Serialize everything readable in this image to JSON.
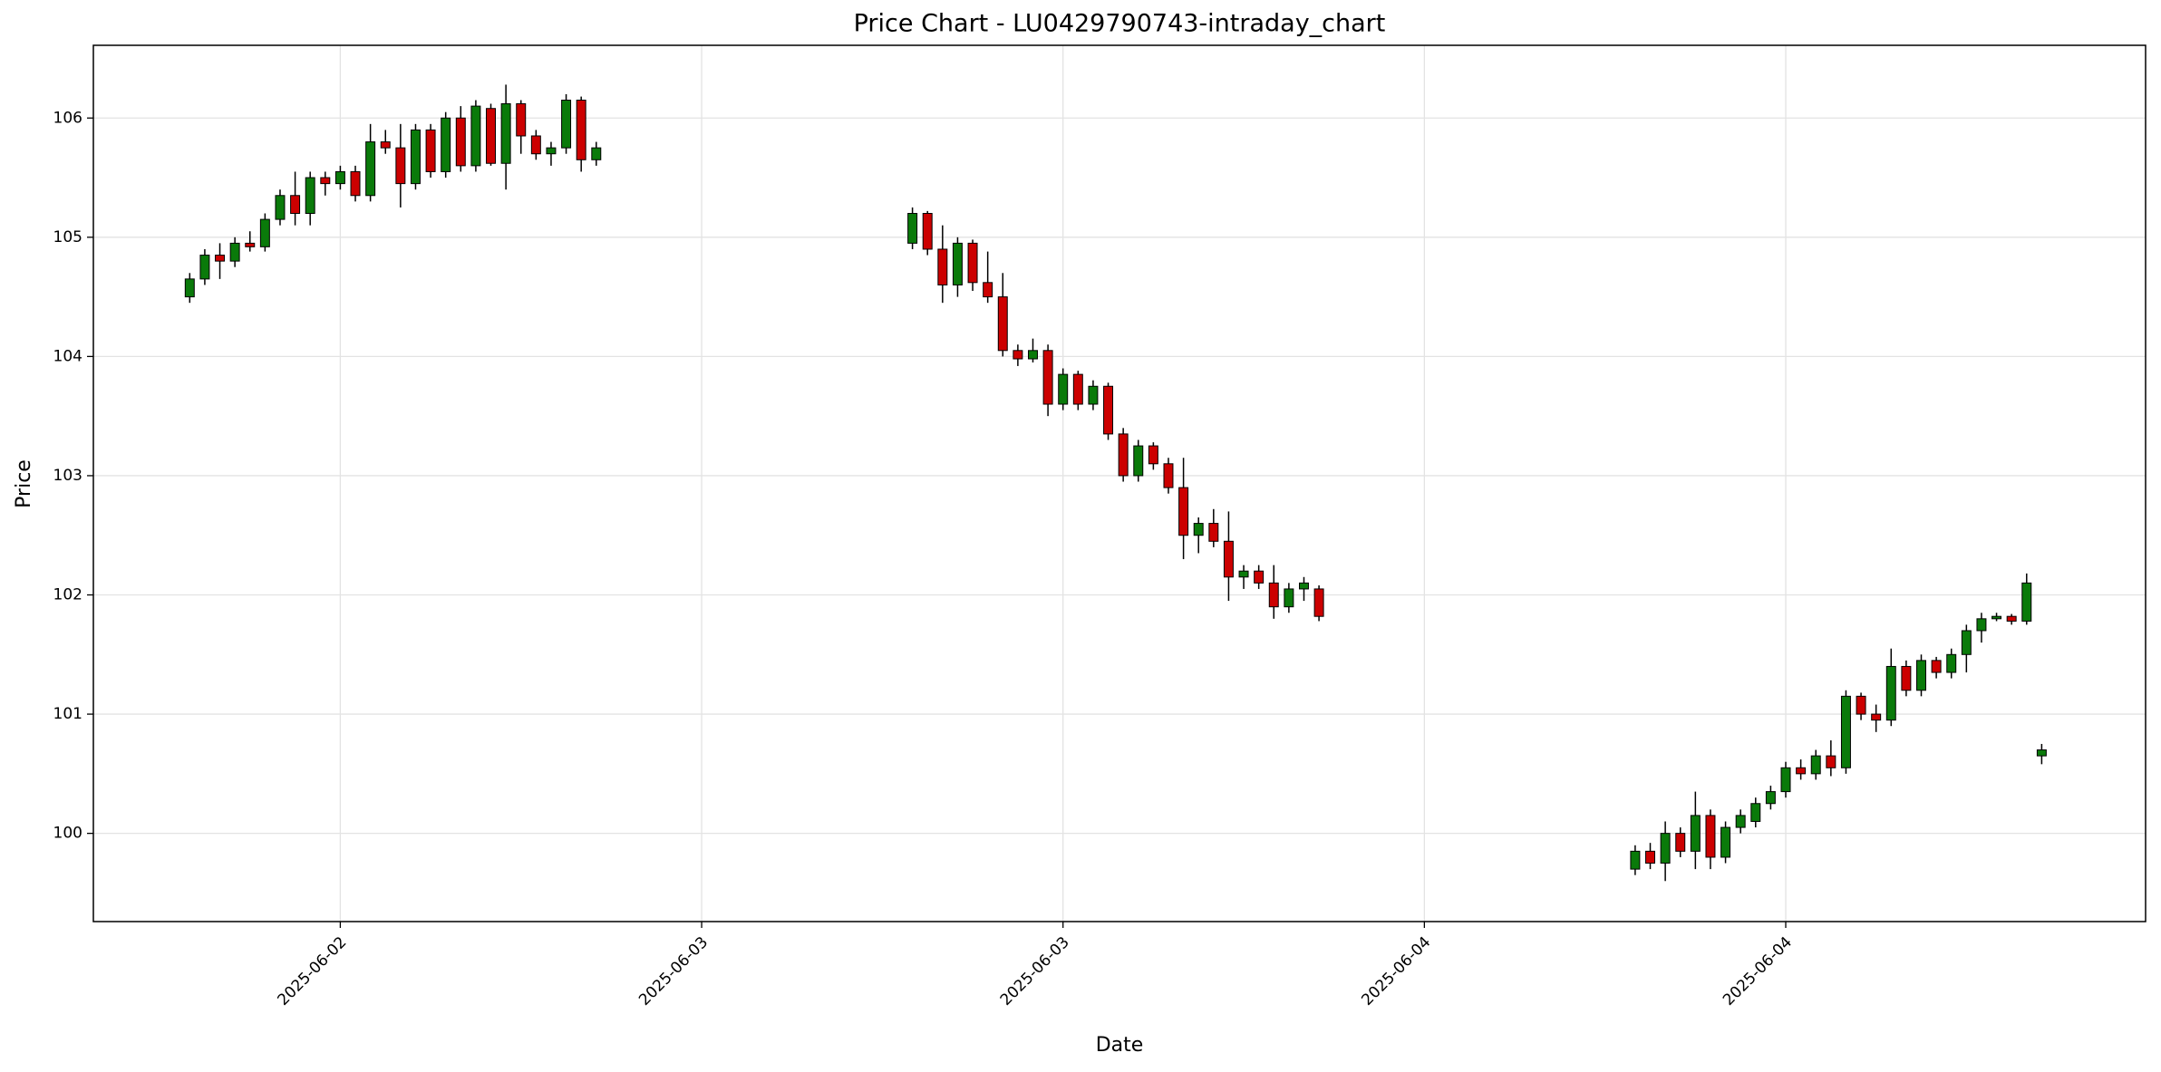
{
  "chart_data": {
    "type": "candlestick",
    "title": "Price Chart - LU0429790743-intraday_chart",
    "x_label": "Date",
    "y_label": "Price",
    "up_color": "#0a7a0a",
    "down_color": "#cc0000",
    "grid": true,
    "xlim": [
      "2025-06-02T03:48",
      "2025-06-04T23:57"
    ],
    "xticks": [
      {
        "value": "2025-06-02T12:00",
        "label": "2025-06-02"
      },
      {
        "value": "2025-06-03T00:00",
        "label": "2025-06-03"
      },
      {
        "value": "2025-06-03T12:00",
        "label": "2025-06-03"
      },
      {
        "value": "2025-06-04T00:00",
        "label": "2025-06-04"
      },
      {
        "value": "2025-06-04T12:00",
        "label": "2025-06-04"
      }
    ],
    "ylim": [
      99.26,
      106.61
    ],
    "yticks": [
      100,
      101,
      102,
      103,
      104,
      105,
      106
    ],
    "x": [
      "2025-06-02T07:00",
      "2025-06-02T07:30",
      "2025-06-02T08:00",
      "2025-06-02T08:30",
      "2025-06-02T09:00",
      "2025-06-02T09:30",
      "2025-06-02T10:00",
      "2025-06-02T10:30",
      "2025-06-02T11:00",
      "2025-06-02T11:30",
      "2025-06-02T12:00",
      "2025-06-02T12:30",
      "2025-06-02T13:00",
      "2025-06-02T13:30",
      "2025-06-02T14:00",
      "2025-06-02T14:30",
      "2025-06-02T15:00",
      "2025-06-02T15:30",
      "2025-06-02T16:00",
      "2025-06-02T16:30",
      "2025-06-02T17:00",
      "2025-06-02T17:30",
      "2025-06-02T18:00",
      "2025-06-02T18:30",
      "2025-06-02T19:00",
      "2025-06-02T19:30",
      "2025-06-02T20:00",
      "2025-06-02T20:30",
      "2025-06-03T07:00",
      "2025-06-03T07:30",
      "2025-06-03T08:00",
      "2025-06-03T08:30",
      "2025-06-03T09:00",
      "2025-06-03T09:30",
      "2025-06-03T10:00",
      "2025-06-03T10:30",
      "2025-06-03T11:00",
      "2025-06-03T11:30",
      "2025-06-03T12:00",
      "2025-06-03T12:30",
      "2025-06-03T13:00",
      "2025-06-03T13:30",
      "2025-06-03T14:00",
      "2025-06-03T14:30",
      "2025-06-03T15:00",
      "2025-06-03T15:30",
      "2025-06-03T16:00",
      "2025-06-03T16:30",
      "2025-06-03T17:00",
      "2025-06-03T17:30",
      "2025-06-03T18:00",
      "2025-06-03T18:30",
      "2025-06-03T19:00",
      "2025-06-03T19:30",
      "2025-06-03T20:00",
      "2025-06-03T20:30",
      "2025-06-04T07:00",
      "2025-06-04T07:30",
      "2025-06-04T08:00",
      "2025-06-04T08:30",
      "2025-06-04T09:00",
      "2025-06-04T09:30",
      "2025-06-04T10:00",
      "2025-06-04T10:30",
      "2025-06-04T11:00",
      "2025-06-04T11:30",
      "2025-06-04T12:00",
      "2025-06-04T12:30",
      "2025-06-04T13:00",
      "2025-06-04T13:30",
      "2025-06-04T14:00",
      "2025-06-04T14:30",
      "2025-06-04T15:00",
      "2025-06-04T15:30",
      "2025-06-04T16:00",
      "2025-06-04T16:30",
      "2025-06-04T17:00",
      "2025-06-04T17:30",
      "2025-06-04T18:00",
      "2025-06-04T18:30",
      "2025-06-04T19:00",
      "2025-06-04T19:30",
      "2025-06-04T20:00",
      "2025-06-04T20:30"
    ],
    "open": [
      104.5,
      104.65,
      104.85,
      104.8,
      104.95,
      104.92,
      105.15,
      105.35,
      105.2,
      105.5,
      105.45,
      105.55,
      105.35,
      105.8,
      105.75,
      105.45,
      105.9,
      105.55,
      106.0,
      105.6,
      106.08,
      105.62,
      106.12,
      105.85,
      105.7,
      105.75,
      106.15,
      105.65,
      104.95,
      105.2,
      104.9,
      104.6,
      104.95,
      104.62,
      104.5,
      104.05,
      103.98,
      104.05,
      103.6,
      103.85,
      103.6,
      103.75,
      103.35,
      103.0,
      103.25,
      103.1,
      102.9,
      102.5,
      102.6,
      102.45,
      102.15,
      102.2,
      102.1,
      101.9,
      102.05,
      102.05,
      99.7,
      99.85,
      99.75,
      100.0,
      99.85,
      100.15,
      99.8,
      100.05,
      100.1,
      100.25,
      100.35,
      100.55,
      100.5,
      100.65,
      100.55,
      101.15,
      101.0,
      100.95,
      101.4,
      101.2,
      101.45,
      101.35,
      101.5,
      101.7,
      101.8,
      101.82,
      101.78,
      100.65
    ],
    "high": [
      104.7,
      104.9,
      104.95,
      105.0,
      105.05,
      105.2,
      105.4,
      105.55,
      105.55,
      105.55,
      105.6,
      105.6,
      105.95,
      105.9,
      105.95,
      105.95,
      105.95,
      106.05,
      106.1,
      106.15,
      106.12,
      106.28,
      106.15,
      105.9,
      105.8,
      106.2,
      106.18,
      105.8,
      105.25,
      105.22,
      105.1,
      105.0,
      104.98,
      104.88,
      104.7,
      104.1,
      104.15,
      104.1,
      103.9,
      103.88,
      103.8,
      103.78,
      103.4,
      103.3,
      103.28,
      103.15,
      103.15,
      102.65,
      102.72,
      102.7,
      102.25,
      102.25,
      102.25,
      102.1,
      102.15,
      102.08,
      99.9,
      99.92,
      100.1,
      100.05,
      100.35,
      100.2,
      100.1,
      100.2,
      100.3,
      100.4,
      100.6,
      100.62,
      100.7,
      100.78,
      101.2,
      101.18,
      101.08,
      101.55,
      101.45,
      101.5,
      101.48,
      101.55,
      101.75,
      101.85,
      101.85,
      101.84,
      102.18,
      100.75
    ],
    "low": [
      104.45,
      104.6,
      104.65,
      104.75,
      104.88,
      104.88,
      105.1,
      105.1,
      105.1,
      105.35,
      105.4,
      105.3,
      105.3,
      105.7,
      105.25,
      105.4,
      105.5,
      105.5,
      105.55,
      105.55,
      105.6,
      105.4,
      105.7,
      105.65,
      105.6,
      105.7,
      105.55,
      105.6,
      104.9,
      104.85,
      104.45,
      104.5,
      104.55,
      104.45,
      104.0,
      103.92,
      103.95,
      103.5,
      103.55,
      103.55,
      103.55,
      103.3,
      102.95,
      102.95,
      103.05,
      102.85,
      102.3,
      102.35,
      102.4,
      101.95,
      102.05,
      102.05,
      101.8,
      101.85,
      101.95,
      101.78,
      99.65,
      99.7,
      99.6,
      99.8,
      99.7,
      99.7,
      99.75,
      100.0,
      100.05,
      100.2,
      100.3,
      100.45,
      100.45,
      100.48,
      100.5,
      100.95,
      100.85,
      100.9,
      101.15,
      101.15,
      101.3,
      101.3,
      101.35,
      101.6,
      101.78,
      101.75,
      101.75,
      100.58
    ],
    "close": [
      104.65,
      104.85,
      104.8,
      104.95,
      104.92,
      105.15,
      105.35,
      105.2,
      105.5,
      105.45,
      105.55,
      105.35,
      105.8,
      105.75,
      105.45,
      105.9,
      105.55,
      106.0,
      105.6,
      106.1,
      105.62,
      106.12,
      105.85,
      105.7,
      105.75,
      106.15,
      105.65,
      105.75,
      105.2,
      104.9,
      104.6,
      104.95,
      104.62,
      104.5,
      104.05,
      103.98,
      104.05,
      103.6,
      103.85,
      103.6,
      103.75,
      103.35,
      103.0,
      103.25,
      103.1,
      102.9,
      102.5,
      102.6,
      102.45,
      102.15,
      102.2,
      102.1,
      101.9,
      102.05,
      102.1,
      101.82,
      99.85,
      99.75,
      100.0,
      99.85,
      100.15,
      99.8,
      100.05,
      100.15,
      100.25,
      100.35,
      100.55,
      100.5,
      100.65,
      100.55,
      101.15,
      101.0,
      100.95,
      101.4,
      101.2,
      101.45,
      101.35,
      101.5,
      101.7,
      101.8,
      101.82,
      101.78,
      102.1,
      100.7
    ]
  }
}
